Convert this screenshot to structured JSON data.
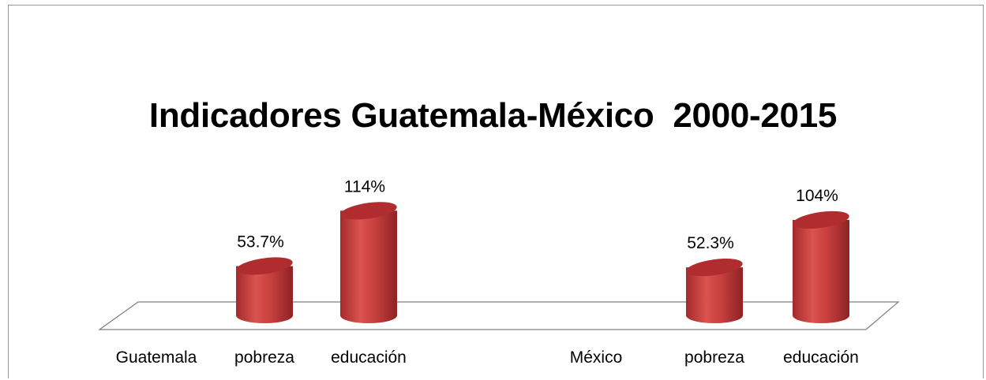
{
  "chart_data": {
    "type": "bar",
    "title": "Indicadores Guatemala-México  2000-2015",
    "categories": [
      "Guatemala",
      "pobreza",
      "educación",
      "México",
      "pobreza",
      "educación"
    ],
    "series": [
      {
        "values": [
          null,
          53.7,
          114,
          null,
          52.3,
          104
        ],
        "labels": [
          "",
          "53.7%",
          "114%",
          "",
          "52.3%",
          "104%"
        ]
      }
    ],
    "ylim": [
      0,
      160
    ],
    "grid": false,
    "legend": "none",
    "style": "3d-cylinder",
    "colors": {
      "bar": "#c0393b",
      "bar_top": "#b02c2f",
      "floor": "#7f7f7f"
    }
  }
}
